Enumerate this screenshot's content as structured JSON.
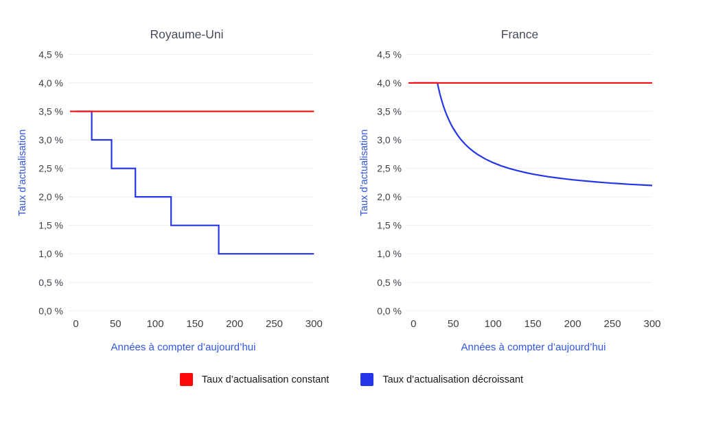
{
  "page": {
    "background": "#ffffff"
  },
  "colors": {
    "constant_rate": "#fc0a0a",
    "declining_rate": "#2435e8",
    "axis_label_blue": "#2f55e9",
    "title_gray": "#474b5c",
    "tick_gray": "#3e3e46",
    "gridline": "#ededee"
  },
  "legend": {
    "items": [
      {
        "label": "Taux d’actualisation constant",
        "color": "#fc0a0a"
      },
      {
        "label": "Taux d’actualisation décroissant",
        "color": "#2435e8"
      }
    ]
  },
  "chart_data": [
    {
      "id": "uk",
      "type": "line",
      "title": "Royaume-Uni",
      "xlabel": "Années à compter d’aujourd’hui",
      "ylabel": "Taux d’actualisation",
      "xlim": [
        0,
        300
      ],
      "ylim": [
        0,
        4.5
      ],
      "grid": "horizontal-only",
      "x_ticks": [
        0,
        50,
        100,
        150,
        200,
        250,
        300
      ],
      "y_ticks": [
        {
          "v": 4.5,
          "label": "4,5 %"
        },
        {
          "v": 4.0,
          "label": "4,0 %"
        },
        {
          "v": 3.5,
          "label": "3,5 %"
        },
        {
          "v": 3.0,
          "label": "3,0 %"
        },
        {
          "v": 2.5,
          "label": "2,5 %"
        },
        {
          "v": 2.0,
          "label": "2,0 %"
        },
        {
          "v": 1.5,
          "label": "1,5 %"
        },
        {
          "v": 1.0,
          "label": "1,0 %"
        },
        {
          "v": 0.5,
          "label": "0,5 %"
        },
        {
          "v": 0.0,
          "label": "0,0 %"
        }
      ],
      "series": [
        {
          "name": "Taux d’actualisation décroissant",
          "style": "curve",
          "color": "#2435e8",
          "points": [
            [
              0,
              3.5
            ],
            [
              20,
              3.5
            ],
            [
              20,
              3.0
            ],
            [
              45,
              3.0
            ],
            [
              45,
              2.5
            ],
            [
              75,
              2.5
            ],
            [
              75,
              2.0
            ],
            [
              120,
              2.0
            ],
            [
              120,
              1.5
            ],
            [
              180,
              1.5
            ],
            [
              180,
              1.0
            ],
            [
              300,
              1.0
            ]
          ]
        },
        {
          "name": "Taux d’actualisation constant",
          "style": "constant",
          "color": "#fc0a0a",
          "rate": 3.5
        }
      ]
    },
    {
      "id": "fr",
      "type": "line",
      "title": "France",
      "xlabel": "Années à compter d’aujourd’hui",
      "ylabel": "Taux d’actualisation",
      "xlim": [
        0,
        300
      ],
      "ylim": [
        0,
        4.5
      ],
      "grid": "horizontal-only",
      "x_ticks": [
        0,
        50,
        100,
        150,
        200,
        250,
        300
      ],
      "y_ticks": [
        {
          "v": 4.5,
          "label": "4,5 %"
        },
        {
          "v": 4.0,
          "label": "4,0 %"
        },
        {
          "v": 3.5,
          "label": "3,5 %"
        },
        {
          "v": 3.0,
          "label": "3,0 %"
        },
        {
          "v": 2.5,
          "label": "2,5 %"
        },
        {
          "v": 2.0,
          "label": "2,0 %"
        },
        {
          "v": 1.5,
          "label": "1,5 %"
        },
        {
          "v": 1.0,
          "label": "1,0 %"
        },
        {
          "v": 0.5,
          "label": "0,5 %"
        },
        {
          "v": 0.0,
          "label": "0,0 %"
        }
      ],
      "series": [
        {
          "name": "Taux d’actualisation décroissant",
          "style": "curve",
          "color": "#2435e8",
          "points": [
            [
              0,
              4.0
            ],
            [
              30,
              4.0
            ],
            [
              31,
              3.935
            ],
            [
              32,
              3.875
            ],
            [
              33,
              3.818
            ],
            [
              34,
              3.765
            ],
            [
              35,
              3.714
            ],
            [
              36,
              3.667
            ],
            [
              38,
              3.579
            ],
            [
              40,
              3.5
            ],
            [
              42,
              3.429
            ],
            [
              45,
              3.333
            ],
            [
              48,
              3.25
            ],
            [
              50,
              3.2
            ],
            [
              55,
              3.091
            ],
            [
              60,
              3.0
            ],
            [
              65,
              2.923
            ],
            [
              70,
              2.857
            ],
            [
              75,
              2.8
            ],
            [
              80,
              2.75
            ],
            [
              90,
              2.667
            ],
            [
              100,
              2.6
            ],
            [
              110,
              2.545
            ],
            [
              120,
              2.5
            ],
            [
              130,
              2.462
            ],
            [
              140,
              2.429
            ],
            [
              150,
              2.4
            ],
            [
              160,
              2.375
            ],
            [
              170,
              2.353
            ],
            [
              180,
              2.333
            ],
            [
              190,
              2.316
            ],
            [
              200,
              2.3
            ],
            [
              210,
              2.286
            ],
            [
              220,
              2.273
            ],
            [
              230,
              2.261
            ],
            [
              240,
              2.25
            ],
            [
              250,
              2.24
            ],
            [
              260,
              2.231
            ],
            [
              270,
              2.222
            ],
            [
              280,
              2.214
            ],
            [
              290,
              2.207
            ],
            [
              300,
              2.2
            ]
          ]
        },
        {
          "name": "Taux d’actualisation constant",
          "style": "constant",
          "color": "#fc0a0a",
          "rate": 4.0
        }
      ]
    }
  ]
}
